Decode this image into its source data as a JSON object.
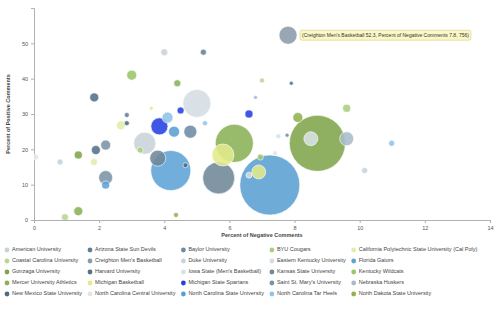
{
  "chart_data": {
    "type": "bubble",
    "x_label": "Percent of Negative Comments",
    "y_label": "Percent of Positive Comments",
    "xlim": [
      0,
      14
    ],
    "ylim": [
      0,
      60
    ],
    "xticks": [
      0,
      2,
      4,
      6,
      8,
      10,
      12,
      14
    ],
    "yticks": [
      0,
      10,
      20,
      30,
      40,
      50
    ],
    "grid": false,
    "legend": "bottom",
    "annotations": [
      {
        "text": "(Creighton Men's Basketball 52.3, Percent of Negative Comments 7.8, 756)",
        "x": 7.8,
        "y": 52.3
      }
    ],
    "series": [
      {
        "name": "American University",
        "color": "#c5d3dc",
        "x": [
          10.15,
          0.8
        ],
        "values": [
          14,
          16.4
        ],
        "sizes": [
          84,
          84
        ]
      },
      {
        "name": "Arizona State Sun Devils",
        "color": "#5e7f98",
        "x": [
          5.2,
          2.85
        ],
        "values": [
          47.5,
          29.7
        ],
        "sizes": [
          84,
          58
        ]
      },
      {
        "name": "Baylor University",
        "color": "#6d8ca3",
        "x": [
          4.8,
          7.77
        ],
        "values": [
          25,
          24
        ],
        "sizes": [
          395,
          37
        ]
      },
      {
        "name": "BYU Cougars",
        "color": "#a9cf7e",
        "x": [
          9.6,
          3.26
        ],
        "values": [
          31.6,
          19.8
        ],
        "sizes": [
          150,
          84
        ]
      },
      {
        "name": "California Polytechnic State University (Cal Poly)",
        "color": "#e4ecaa",
        "x": [
          2.67,
          1.84
        ],
        "values": [
          26.8,
          16.4
        ],
        "sizes": [
          190,
          115
        ]
      },
      {
        "name": "Coastal Carolina University",
        "color": "#b6d694",
        "x": [
          7.0,
          0.95
        ],
        "values": [
          39.5,
          0.8
        ],
        "sizes": [
          58,
          115
        ]
      },
      {
        "name": "Creighton Men's Basketball",
        "color": "#8a9ba8",
        "x": [
          7.8
        ],
        "values": [
          52.3
        ],
        "sizes": [
          756
        ]
      },
      {
        "name": "Duke University",
        "color": "#c9d3da",
        "x": [
          3.4,
          4.0
        ],
        "values": [
          21.7,
          47.5
        ],
        "sizes": [
          1130,
          115
        ]
      },
      {
        "name": "Eastern Kentucky University",
        "color": "#d4dde3",
        "x": [
          5.0,
          6.6
        ],
        "values": [
          33,
          12.7
        ],
        "sizes": [
          1830,
          84
        ]
      },
      {
        "name": "Florida Gators",
        "color": "#5ea3d6",
        "x": [
          4.2,
          2.2
        ],
        "values": [
          14,
          9.9
        ],
        "sizes": [
          3730,
          150
        ]
      },
      {
        "name": "Gonzaga University",
        "color": "#7fa54b",
        "x": [
          8.7,
          1.36
        ],
        "values": [
          21.7,
          18.4
        ],
        "sizes": [
          7320,
          150
        ]
      },
      {
        "name": "Harvard University",
        "color": "#52718a",
        "x": [
          1.85,
          1.9
        ],
        "values": [
          34.7,
          19.8
        ],
        "sizes": [
          190,
          190
        ]
      },
      {
        "name": "Iowa State (Men's Basketball)",
        "color": "#d8e1e6",
        "x": [
          8.5,
          7.5
        ],
        "values": [
          23,
          23.7
        ],
        "sizes": [
          457,
          58
        ]
      },
      {
        "name": "Kansas State University",
        "color": "#6f8799",
        "x": [
          5.67,
          3.8
        ],
        "values": [
          11.9,
          17.5
        ],
        "sizes": [
          2390,
          600
        ]
      },
      {
        "name": "Kentucky Wildcats",
        "color": "#9bc66a",
        "x": [
          3.0,
          6.95
        ],
        "values": [
          41,
          17.8
        ],
        "sizes": [
          233,
          84
        ]
      },
      {
        "name": "Mercer University Athletics",
        "color": "#89b256",
        "x": [
          6.15,
          1.36,
          4.4
        ],
        "values": [
          21.7,
          2.5,
          38.7
        ],
        "sizes": [
          3370,
          190,
          115
        ]
      },
      {
        "name": "Michigan Basketball",
        "color": "#e2ea8a",
        "x": [
          5.8,
          6.9,
          3.6
        ],
        "values": [
          18.4,
          13.6,
          31.6
        ],
        "sizes": [
          1130,
          457,
          37
        ]
      },
      {
        "name": "Michigan State Spartans",
        "color": "#2340e0",
        "x": [
          3.85,
          4.5,
          6.6
        ],
        "values": [
          26.5,
          31,
          30
        ],
        "sizes": [
          675,
          115,
          150
        ]
      },
      {
        "name": "Saint St. Mary's University",
        "color": "#7b93a6",
        "x": [
          2.2,
          2.2
        ],
        "values": [
          12,
          21.2
        ],
        "sizes": [
          457,
          233
        ]
      },
      {
        "name": "Nebraska Huskers",
        "color": "#a7bccb",
        "x": [
          9.6,
          6.8
        ],
        "values": [
          23,
          34.7
        ],
        "sizes": [
          457,
          37
        ]
      },
      {
        "name": "New Mexico State University",
        "color": "#4d6b84",
        "x": [
          7.9,
          2.85,
          4.65
        ],
        "values": [
          38.7,
          27.4,
          15.5
        ],
        "sizes": [
          37,
          58,
          58
        ]
      },
      {
        "name": "North Carolina Central University",
        "color": "#dfe6ea",
        "x": [
          7.4,
          0.05
        ],
        "values": [
          18.9,
          17.8
        ],
        "sizes": [
          58,
          84
        ]
      },
      {
        "name": "North Carolina State University",
        "color": "#5b9fd2",
        "x": [
          7.24,
          4.3
        ],
        "values": [
          9.9,
          25
        ],
        "sizes": [
          8400,
          280
        ]
      },
      {
        "name": "North Carolina Tar Heels",
        "color": "#8fc3e6",
        "x": [
          4.1,
          10.98,
          5.25
        ],
        "values": [
          29,
          21.7,
          27.4
        ],
        "sizes": [
          280,
          84,
          58
        ]
      },
      {
        "name": "North Dakota State University",
        "color": "#91b24f",
        "x": [
          8.1,
          4.36
        ],
        "values": [
          29,
          1.4
        ],
        "sizes": [
          233,
          58
        ]
      }
    ]
  }
}
